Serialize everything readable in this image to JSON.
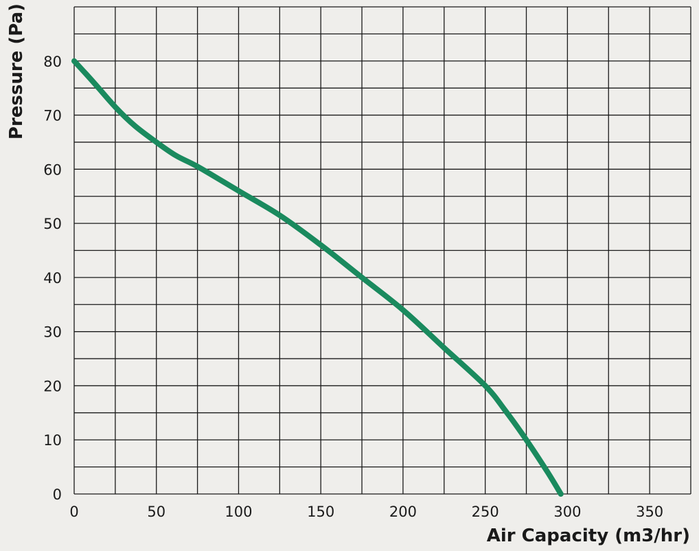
{
  "chart_data": {
    "type": "line",
    "title": "",
    "xlabel": "Air Capacity (m3/hr)",
    "ylabel": "Pressure (Pa)",
    "x_ticks": [
      "0",
      "50",
      "100",
      "150",
      "200",
      "250",
      "300",
      "350"
    ],
    "y_ticks": [
      "0",
      "10",
      "20",
      "30",
      "40",
      "50",
      "60",
      "70",
      "80"
    ],
    "xlim": [
      0,
      375
    ],
    "ylim": [
      0,
      90
    ],
    "grid": true,
    "grid_x_step": 25,
    "grid_y_step": 5,
    "line_color": "#1a8a5e",
    "grid_color": "#1a1a1a",
    "series": [
      {
        "x": [
          0,
          12,
          25,
          37,
          50,
          62,
          75,
          100,
          125,
          150,
          175,
          200,
          225,
          250,
          262,
          275,
          288,
          296
        ],
        "y": [
          80,
          76,
          71.5,
          68,
          65,
          62.5,
          60.5,
          56,
          51.5,
          46,
          40,
          34,
          27,
          20,
          15.5,
          10,
          4,
          0
        ]
      }
    ]
  }
}
